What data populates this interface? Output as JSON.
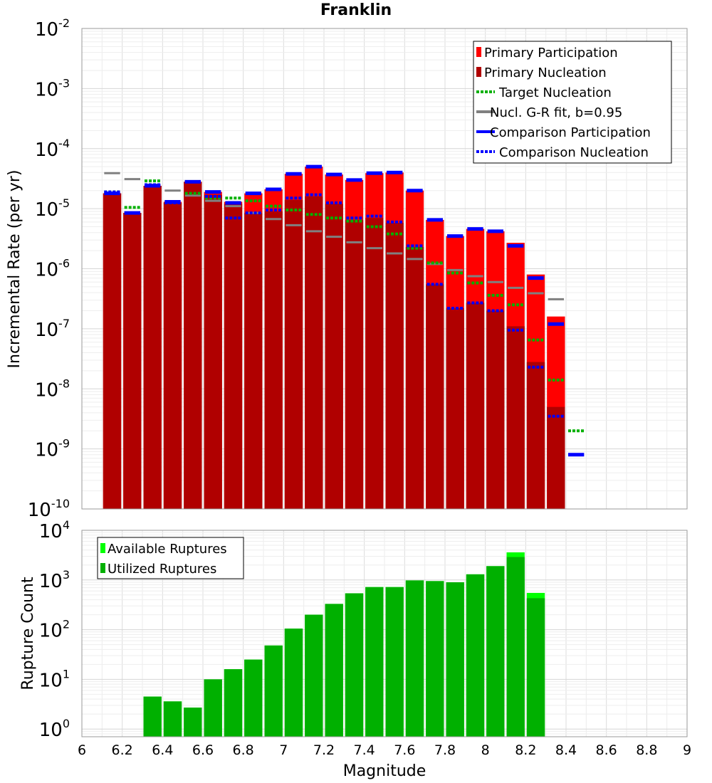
{
  "chart_data": [
    {
      "type": "bar",
      "title": "Franklin",
      "ylabel": "Incremental Rate (per yr)",
      "xlim": [
        6,
        9
      ],
      "ylim": [
        1e-10,
        0.01
      ],
      "yscale": "log",
      "grid": true,
      "legend_position": "top-right",
      "y_ticks": [
        {
          "base": "10",
          "exp": "-10"
        },
        {
          "base": "10",
          "exp": "-9"
        },
        {
          "base": "10",
          "exp": "-8"
        },
        {
          "base": "10",
          "exp": "-7"
        },
        {
          "base": "10",
          "exp": "-6"
        },
        {
          "base": "10",
          "exp": "-5"
        },
        {
          "base": "10",
          "exp": "-4"
        },
        {
          "base": "10",
          "exp": "-3"
        },
        {
          "base": "10",
          "exp": "-2"
        }
      ],
      "legend": [
        {
          "label": "Primary Participation",
          "color": "#ff0000",
          "style": "bar"
        },
        {
          "label": "Primary Nucleation",
          "color": "#b00000",
          "style": "bar"
        },
        {
          "label": "Target Nucleation",
          "color": "#00b000",
          "style": "dotted"
        },
        {
          "label": "Nucl. G-R fit, b=0.95",
          "color": "#808080",
          "style": "solid"
        },
        {
          "label": "Comparison Participation",
          "color": "#0000ff",
          "style": "solid"
        },
        {
          "label": "Comparison Nucleation",
          "color": "#0000ff",
          "style": "dotted"
        }
      ],
      "x": [
        6.15,
        6.25,
        6.35,
        6.45,
        6.55,
        6.65,
        6.75,
        6.85,
        6.95,
        7.05,
        7.15,
        7.25,
        7.35,
        7.45,
        7.55,
        7.65,
        7.75,
        7.85,
        7.95,
        8.05,
        8.15,
        8.25,
        8.35,
        8.45
      ],
      "series": [
        {
          "name": "Primary Participation",
          "color": "#ff0000",
          "values": [
            1.8e-05,
            8.5e-06,
            2.4e-05,
            1.3e-05,
            2.8e-05,
            1.9e-05,
            1.3e-05,
            1.8e-05,
            2.1e-05,
            3.8e-05,
            5e-05,
            3.7e-05,
            3e-05,
            3.9e-05,
            4e-05,
            2e-05,
            6.5e-06,
            3.5e-06,
            4.6e-06,
            4.2e-06,
            2.7e-06,
            8e-07,
            1.6e-07,
            null
          ]
        },
        {
          "name": "Primary Nucleation",
          "color": "#b00000",
          "values": [
            1.8e-05,
            8.5e-06,
            2.4e-05,
            1.25e-05,
            2.8e-05,
            1.7e-05,
            1.2e-05,
            8.5e-06,
            9e-06,
            1.4e-05,
            1.6e-05,
            1.2e-05,
            6.5e-06,
            7e-06,
            5.8e-06,
            2.3e-06,
            5.5e-07,
            2.2e-07,
            2.7e-07,
            2e-07,
            1.1e-07,
            2.8e-08,
            5e-09,
            null
          ]
        },
        {
          "name": "Target Nucleation",
          "color": "#00b000",
          "values": [
            1.9e-05,
            1.05e-05,
            2.9e-05,
            1.25e-05,
            1.8e-05,
            1.5e-05,
            1.5e-05,
            1.35e-05,
            1.1e-05,
            9.5e-06,
            8e-06,
            7e-06,
            6.2e-06,
            5e-06,
            3.8e-06,
            2.2e-06,
            1.25e-06,
            8.5e-07,
            5.8e-07,
            3.6e-07,
            2.5e-07,
            6.5e-08,
            1.4e-08,
            2e-09
          ]
        },
        {
          "name": "Nucl. G-R fit, b=0.95",
          "color": "#808080",
          "values": [
            3.9e-05,
            3.1e-05,
            2.5e-05,
            2e-05,
            1.65e-05,
            1.35e-05,
            1.1e-05,
            8.5e-06,
            6.7e-06,
            5.3e-06,
            4.2e-06,
            3.4e-06,
            2.75e-06,
            2.2e-06,
            1.8e-06,
            1.45e-06,
            1.2e-06,
            9.5e-07,
            7.5e-07,
            6e-07,
            4.8e-07,
            3.9e-07,
            3.1e-07,
            null
          ]
        },
        {
          "name": "Comparison Participation",
          "color": "#0000ff",
          "values": [
            1.8e-05,
            8.5e-06,
            2.4e-05,
            1.3e-05,
            2.8e-05,
            1.9e-05,
            1.25e-05,
            1.8e-05,
            2.1e-05,
            3.8e-05,
            5e-05,
            3.7e-05,
            3e-05,
            3.9e-05,
            4e-05,
            2e-05,
            6.5e-06,
            3.5e-06,
            4.6e-06,
            4.2e-06,
            2.4e-06,
            7e-07,
            1.2e-07,
            8e-10
          ]
        },
        {
          "name": "Comparison Nucleation",
          "color": "#0000ff",
          "values": [
            1.9e-05,
            8.5e-06,
            2.5e-05,
            1.25e-05,
            2.8e-05,
            1.6e-05,
            7e-06,
            8.5e-06,
            9.5e-06,
            1.5e-05,
            1.7e-05,
            1.25e-05,
            7e-06,
            7.5e-06,
            6e-06,
            2.4e-06,
            5.5e-07,
            2.2e-07,
            2.7e-07,
            2e-07,
            9.5e-08,
            2.3e-08,
            3.5e-09,
            null
          ]
        }
      ]
    },
    {
      "type": "bar",
      "xlabel": "Magnitude",
      "ylabel": "Rupture Count",
      "xlim": [
        6,
        9
      ],
      "ylim": [
        0.7,
        10000
      ],
      "yscale": "log",
      "grid": true,
      "legend_position": "top-left",
      "x_ticks": [
        "6",
        "6.2",
        "6.4",
        "6.6",
        "6.8",
        "7",
        "7.2",
        "7.4",
        "7.6",
        "7.8",
        "8",
        "8.2",
        "8.4",
        "8.6",
        "8.8",
        "9"
      ],
      "y_ticks": [
        {
          "base": "10",
          "exp": "0"
        },
        {
          "base": "10",
          "exp": "1"
        },
        {
          "base": "10",
          "exp": "2"
        },
        {
          "base": "10",
          "exp": "3"
        },
        {
          "base": "10",
          "exp": "4"
        }
      ],
      "legend": [
        {
          "label": "Available Ruptures",
          "color": "#00ff00",
          "style": "bar"
        },
        {
          "label": "Utilized Ruptures",
          "color": "#00b000",
          "style": "bar"
        }
      ],
      "x": [
        6.35,
        6.45,
        6.55,
        6.65,
        6.75,
        6.85,
        6.95,
        7.05,
        7.15,
        7.25,
        7.35,
        7.45,
        7.55,
        7.65,
        7.75,
        7.85,
        7.95,
        8.05,
        8.15,
        8.25
      ],
      "series": [
        {
          "name": "Available Ruptures",
          "color": "#00ff00",
          "values": [
            4.5,
            3.6,
            2.7,
            10,
            16,
            25,
            48,
            105,
            200,
            330,
            540,
            720,
            720,
            980,
            950,
            900,
            1300,
            1900,
            3600,
            550
          ]
        },
        {
          "name": "Utilized Ruptures",
          "color": "#00b000",
          "values": [
            4.5,
            3.6,
            2.7,
            10,
            16,
            25,
            48,
            105,
            200,
            330,
            540,
            720,
            720,
            980,
            950,
            900,
            1300,
            1900,
            2900,
            430
          ]
        }
      ]
    }
  ]
}
